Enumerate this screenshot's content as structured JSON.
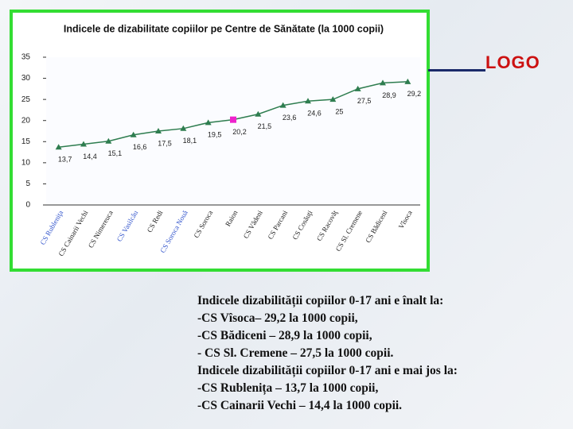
{
  "slide": {
    "logo": "LOGO",
    "text": [
      "Indicele dizabilității copiilor 0-17 ani e înalt la:",
      "-CS Vîsoca– 29,2 la 1000 copii,",
      "-CS Bădiceni – 28,9 la 1000 copii,",
      "- CS Sl. Cremene – 27,5 la 1000 copii.",
      "Indicele dizabilității copiilor 0-17 ani e mai jos la:",
      "-CS Rublenița – 13,7 la 1000 copii,",
      "-CS Cainarii Vechi – 14,4 la 1000 copii."
    ]
  },
  "chart_data": {
    "type": "line",
    "title": "Indicele de dizabilitate copiilor  pe Centre de Sănătate (la 1000 copii)",
    "categories": [
      "CS Rubleniţa",
      "CS Cainarii Vechi",
      "CS Nimereuca",
      "CS Vasilcău",
      "CS Redi",
      "CS Soroca Nouă",
      "CS Soroca",
      "Raion",
      "CS Vădeni",
      "CS Parcani",
      "CS Cosăuţi",
      "CS Racovăţ",
      "CS Sl. Cremene",
      "CS Bădiceni",
      "Vîsoca"
    ],
    "category_label_colors": [
      "#3355cc",
      "#222222",
      "#222222",
      "#3355cc",
      "#222222",
      "#3355cc",
      "#222222",
      "#222222",
      "#222222",
      "#222222",
      "#222222",
      "#222222",
      "#222222",
      "#222222",
      "#222222"
    ],
    "values": [
      13.7,
      14.4,
      15.1,
      16.6,
      17.5,
      18.1,
      19.5,
      20.2,
      21.5,
      23.6,
      24.6,
      25,
      27.5,
      28.9,
      29.2
    ],
    "value_labels": [
      "13,7",
      "14,4",
      "15,1",
      "16,6",
      "17,5",
      "18,1",
      "19,5",
      "20,2",
      "21,5",
      "23,6",
      "24,6",
      "25",
      "27,5",
      "28,9",
      "29,2"
    ],
    "color": "#2e7d4f",
    "point_colors": [
      "#2e7d4f",
      "#2e7d4f",
      "#2e7d4f",
      "#2e7d4f",
      "#2e7d4f",
      "#2e7d4f",
      "#2e7d4f",
      "#ee22cc",
      "#2e7d4f",
      "#2e7d4f",
      "#2e7d4f",
      "#2e7d4f",
      "#2e7d4f",
      "#2e7d4f",
      "#2e7d4f"
    ],
    "ylim": [
      0,
      35
    ],
    "yticks": [
      0,
      5,
      10,
      15,
      20,
      25,
      30,
      35
    ],
    "grid": false
  }
}
